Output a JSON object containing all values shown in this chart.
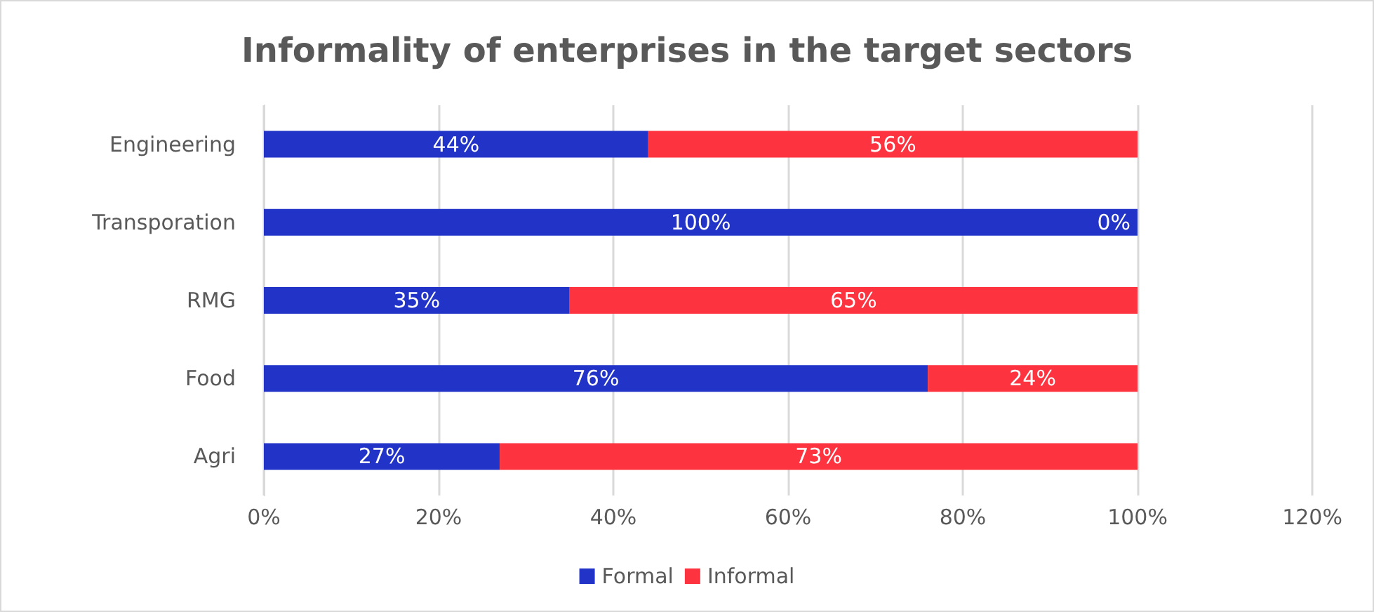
{
  "chart_data": {
    "type": "bar",
    "orientation": "horizontal",
    "stacked": true,
    "title": "Informality of enterprises in the target sectors",
    "categories": [
      "Engineering",
      "Transporation",
      "RMG",
      "Food",
      "Agri"
    ],
    "series": [
      {
        "name": "Formal",
        "color": "#2233c8",
        "values": [
          44,
          100,
          35,
          76,
          27
        ],
        "value_labels": [
          "44%",
          "100%",
          "35%",
          "76%",
          "27%"
        ]
      },
      {
        "name": "Informal",
        "color": "#fd3340",
        "values": [
          56,
          0,
          65,
          24,
          73
        ],
        "value_labels": [
          "56%",
          "0%",
          "65%",
          "24%",
          "73%"
        ]
      }
    ],
    "xlim": [
      0,
      120
    ],
    "xticks": [
      {
        "value": 0,
        "label": "0%"
      },
      {
        "value": 20,
        "label": "20%"
      },
      {
        "value": 40,
        "label": "40%"
      },
      {
        "value": 60,
        "label": "60%"
      },
      {
        "value": 80,
        "label": "80%"
      },
      {
        "value": 100,
        "label": "100%"
      },
      {
        "value": 120,
        "label": "120%"
      }
    ],
    "grid": "x",
    "legend": "bottom"
  }
}
